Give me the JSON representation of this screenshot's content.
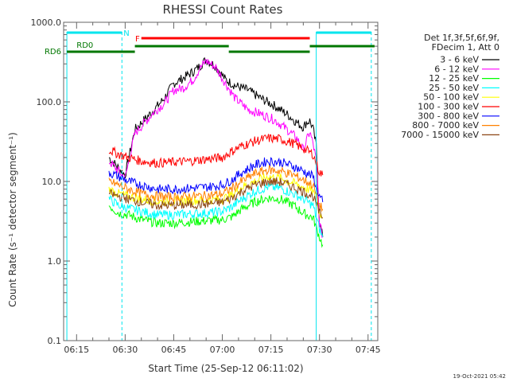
{
  "chart_data": {
    "type": "line",
    "title": "RHESSI Count Rates",
    "xlabel": "Start Time (25-Sep-12 06:11:02)",
    "ylabel": "Count Rate (s⁻¹ detector segment⁻¹)",
    "y_scale": "log",
    "ylim": [
      0.1,
      1000
    ],
    "xlim": [
      "06:11",
      "07:48"
    ],
    "y_tick_labels": [
      "0.1",
      "1.0",
      "10.0",
      "100.0",
      "1000.0"
    ],
    "x_tick_labels": [
      "06:15",
      "06:30",
      "06:45",
      "07:00",
      "07:15",
      "07:30",
      "07:45"
    ],
    "legend_header": [
      "Det 1f,3f,5f,6f,9f,",
      "FDecim 1, Att 0"
    ],
    "footer_date": "19-Oct-2021 05:42",
    "flag_labels": {
      "n": "N",
      "f": "F",
      "rd0": "RD0",
      "rd6": "RD6"
    },
    "dashed_times": [
      "06:29",
      "07:46"
    ],
    "solid_times": [
      "06:12",
      "07:29"
    ],
    "series": [
      {
        "name": "3 - 6 keV",
        "color": "#000000",
        "points": [
          [
            "06:25",
            20
          ],
          [
            "06:30",
            12
          ],
          [
            "06:33",
            45
          ],
          [
            "06:36",
            60
          ],
          [
            "06:39",
            80
          ],
          [
            "06:42",
            110
          ],
          [
            "06:45",
            170
          ],
          [
            "06:48",
            200
          ],
          [
            "06:51",
            240
          ],
          [
            "06:53",
            280
          ],
          [
            "06:55",
            340
          ],
          [
            "06:58",
            280
          ],
          [
            "07:01",
            190
          ],
          [
            "07:04",
            160
          ],
          [
            "07:08",
            140
          ],
          [
            "07:12",
            110
          ],
          [
            "07:16",
            90
          ],
          [
            "07:20",
            70
          ],
          [
            "07:23",
            55
          ],
          [
            "07:25",
            48
          ],
          [
            "07:26",
            55
          ],
          [
            "07:27",
            58
          ],
          [
            "07:28",
            46
          ],
          [
            "07:29",
            28
          ],
          [
            "07:30",
            3
          ],
          [
            "07:31",
            2
          ]
        ]
      },
      {
        "name": "6 - 12 keV",
        "color": "#ff00ff",
        "points": [
          [
            "06:25",
            18
          ],
          [
            "06:30",
            11
          ],
          [
            "06:33",
            40
          ],
          [
            "06:36",
            55
          ],
          [
            "06:39",
            75
          ],
          [
            "06:42",
            95
          ],
          [
            "06:45",
            140
          ],
          [
            "06:48",
            150
          ],
          [
            "06:51",
            190
          ],
          [
            "06:53",
            260
          ],
          [
            "06:55",
            330
          ],
          [
            "06:58",
            270
          ],
          [
            "07:01",
            170
          ],
          [
            "07:04",
            110
          ],
          [
            "07:08",
            80
          ],
          [
            "07:12",
            70
          ],
          [
            "07:16",
            60
          ],
          [
            "07:20",
            45
          ],
          [
            "07:23",
            35
          ],
          [
            "07:25",
            25
          ],
          [
            "07:27",
            42
          ],
          [
            "07:28",
            30
          ],
          [
            "07:29",
            18
          ],
          [
            "07:30",
            3
          ],
          [
            "07:31",
            2
          ]
        ]
      },
      {
        "name": "12 - 25 keV",
        "color": "#00ff00",
        "points": [
          [
            "06:25",
            5
          ],
          [
            "06:28",
            4
          ],
          [
            "06:31",
            3.8
          ],
          [
            "06:35",
            3.3
          ],
          [
            "06:40",
            3.0
          ],
          [
            "06:45",
            3.0
          ],
          [
            "06:50",
            3.1
          ],
          [
            "06:55",
            3.2
          ],
          [
            "07:00",
            3.3
          ],
          [
            "07:03",
            3.6
          ],
          [
            "07:06",
            4.5
          ],
          [
            "07:10",
            5.5
          ],
          [
            "07:14",
            6.2
          ],
          [
            "07:18",
            6.0
          ],
          [
            "07:22",
            5.0
          ],
          [
            "07:25",
            4.0
          ],
          [
            "07:28",
            3.5
          ],
          [
            "07:30",
            2.0
          ],
          [
            "07:31",
            1.6
          ]
        ]
      },
      {
        "name": "25 - 50 keV",
        "color": "#00ffff",
        "points": [
          [
            "06:25",
            6
          ],
          [
            "06:28",
            5
          ],
          [
            "06:31",
            4.6
          ],
          [
            "06:35",
            4.2
          ],
          [
            "06:40",
            3.8
          ],
          [
            "06:45",
            3.8
          ],
          [
            "06:50",
            3.9
          ],
          [
            "06:55",
            4.0
          ],
          [
            "07:00",
            4.2
          ],
          [
            "07:03",
            4.8
          ],
          [
            "07:06",
            6.0
          ],
          [
            "07:10",
            7.5
          ],
          [
            "07:14",
            8.5
          ],
          [
            "07:18",
            8.2
          ],
          [
            "07:22",
            7.0
          ],
          [
            "07:25",
            6.0
          ],
          [
            "07:28",
            5.0
          ],
          [
            "07:30",
            2.5
          ],
          [
            "07:31",
            2.0
          ]
        ]
      },
      {
        "name": "50 - 100 keV",
        "color": "#ffff00",
        "points": [
          [
            "06:25",
            8
          ],
          [
            "06:28",
            7
          ],
          [
            "06:31",
            6.5
          ],
          [
            "06:35",
            6.0
          ],
          [
            "06:40",
            5.6
          ],
          [
            "06:45",
            5.6
          ],
          [
            "06:50",
            5.8
          ],
          [
            "06:55",
            5.8
          ],
          [
            "07:00",
            6.0
          ],
          [
            "07:03",
            6.8
          ],
          [
            "07:06",
            8.5
          ],
          [
            "07:10",
            10
          ],
          [
            "07:14",
            11.5
          ],
          [
            "07:18",
            11
          ],
          [
            "07:22",
            9.5
          ],
          [
            "07:25",
            8.5
          ],
          [
            "07:28",
            7.5
          ],
          [
            "07:30",
            4.0
          ],
          [
            "07:31",
            3.5
          ]
        ]
      },
      {
        "name": "100 - 300 keV",
        "color": "#ff0000",
        "points": [
          [
            "06:25",
            25
          ],
          [
            "06:28",
            22
          ],
          [
            "06:31",
            20
          ],
          [
            "06:35",
            18
          ],
          [
            "06:40",
            17
          ],
          [
            "06:45",
            17.5
          ],
          [
            "06:50",
            18
          ],
          [
            "06:55",
            19
          ],
          [
            "07:00",
            20
          ],
          [
            "07:03",
            24
          ],
          [
            "07:06",
            28
          ],
          [
            "07:10",
            32
          ],
          [
            "07:14",
            35
          ],
          [
            "07:18",
            34
          ],
          [
            "07:22",
            30
          ],
          [
            "07:25",
            26
          ],
          [
            "07:28",
            22
          ],
          [
            "07:30",
            13
          ],
          [
            "07:31",
            12
          ]
        ]
      },
      {
        "name": "300 - 800 keV",
        "color": "#0000ff",
        "points": [
          [
            "06:25",
            13
          ],
          [
            "06:28",
            11.5
          ],
          [
            "06:31",
            10
          ],
          [
            "06:35",
            9
          ],
          [
            "06:40",
            8
          ],
          [
            "06:45",
            8
          ],
          [
            "06:50",
            8.2
          ],
          [
            "06:55",
            8.5
          ],
          [
            "07:00",
            9
          ],
          [
            "07:03",
            10.5
          ],
          [
            "07:06",
            13
          ],
          [
            "07:10",
            16
          ],
          [
            "07:14",
            18
          ],
          [
            "07:18",
            17.5
          ],
          [
            "07:22",
            15.5
          ],
          [
            "07:25",
            13.5
          ],
          [
            "07:28",
            11.5
          ],
          [
            "07:30",
            6.5
          ],
          [
            "07:31",
            5.5
          ]
        ]
      },
      {
        "name": "800 - 7000 keV",
        "color": "#ff8000",
        "points": [
          [
            "06:25",
            10
          ],
          [
            "06:28",
            9
          ],
          [
            "06:31",
            8
          ],
          [
            "06:35",
            7.0
          ],
          [
            "06:40",
            6.5
          ],
          [
            "06:45",
            6.3
          ],
          [
            "06:50",
            6.5
          ],
          [
            "06:55",
            6.6
          ],
          [
            "07:00",
            7.0
          ],
          [
            "07:03",
            8.2
          ],
          [
            "07:06",
            10
          ],
          [
            "07:10",
            12.5
          ],
          [
            "07:14",
            14
          ],
          [
            "07:18",
            13.5
          ],
          [
            "07:22",
            12
          ],
          [
            "07:25",
            10.5
          ],
          [
            "07:28",
            9
          ],
          [
            "07:30",
            5
          ],
          [
            "07:31",
            4.5
          ]
        ]
      },
      {
        "name": "7000 - 15000 keV",
        "color": "#8b4513",
        "points": [
          [
            "06:25",
            7
          ],
          [
            "06:28",
            6.5
          ],
          [
            "06:31",
            6
          ],
          [
            "06:35",
            5.5
          ],
          [
            "06:40",
            5
          ],
          [
            "06:45",
            5
          ],
          [
            "06:50",
            5.1
          ],
          [
            "06:55",
            5.2
          ],
          [
            "07:00",
            5.5
          ],
          [
            "07:03",
            6.2
          ],
          [
            "07:06",
            7.5
          ],
          [
            "07:10",
            9
          ],
          [
            "07:14",
            10
          ],
          [
            "07:18",
            9.8
          ],
          [
            "07:22",
            8.5
          ],
          [
            "07:25",
            7.5
          ],
          [
            "07:28",
            6.5
          ],
          [
            "07:30",
            4
          ],
          [
            "07:31",
            3.5
          ]
        ]
      }
    ]
  }
}
